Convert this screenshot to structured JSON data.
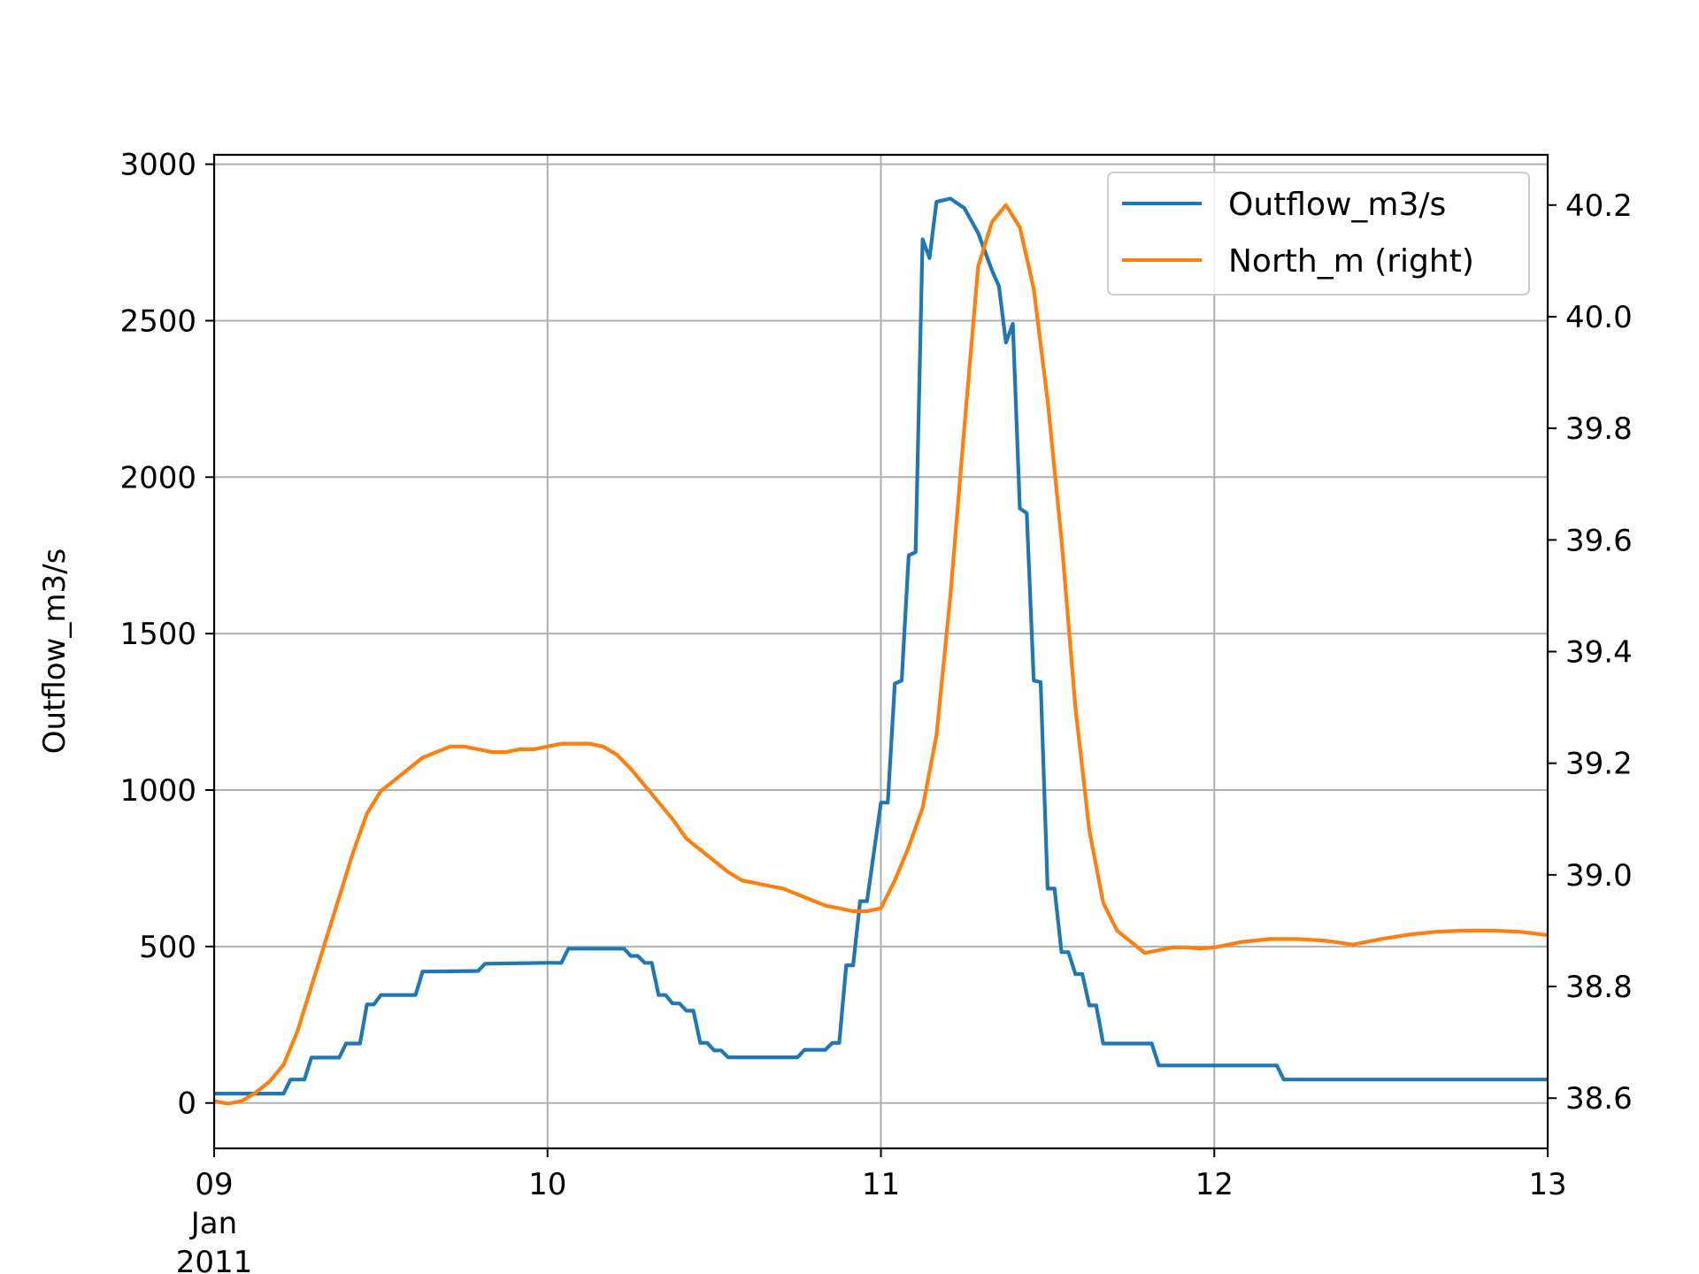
{
  "chart_data": {
    "type": "line",
    "title": "",
    "xlabel": "",
    "ylabel": "Outflow_m3/s",
    "y2label": "",
    "grid": true,
    "legend": "top-right",
    "x_range": [
      "2011-01-09 00:00",
      "2011-01-13 00:00"
    ],
    "x_ticks": [
      {
        "date": "2011-01-09 00:00",
        "label": "09",
        "sublabels": [
          "Jan",
          "2011"
        ]
      },
      {
        "date": "2011-01-10 00:00",
        "label": "10",
        "sublabels": []
      },
      {
        "date": "2011-01-11 00:00",
        "label": "11",
        "sublabels": []
      },
      {
        "date": "2011-01-12 00:00",
        "label": "12",
        "sublabels": []
      },
      {
        "date": "2011-01-13 00:00",
        "label": "13",
        "sublabels": []
      }
    ],
    "ylim": [
      -145,
      3030
    ],
    "y_ticks": [
      0,
      500,
      1000,
      1500,
      2000,
      2500,
      3000
    ],
    "y2lim": [
      38.51,
      40.29
    ],
    "y2_ticks": [
      "38.6",
      "38.8",
      "39.0",
      "39.2",
      "39.4",
      "39.6",
      "39.8",
      "40.0",
      "40.2"
    ],
    "series": [
      {
        "name": "Outflow_m3/s",
        "axis": "left",
        "color": "#1f77b4",
        "points": [
          [
            "2011-01-09 00:00",
            30
          ],
          [
            "2011-01-09 05:00",
            30
          ],
          [
            "2011-01-09 05:30",
            75
          ],
          [
            "2011-01-09 06:30",
            75
          ],
          [
            "2011-01-09 07:00",
            145
          ],
          [
            "2011-01-09 09:00",
            145
          ],
          [
            "2011-01-09 09:30",
            190
          ],
          [
            "2011-01-09 10:30",
            190
          ],
          [
            "2011-01-09 11:00",
            315
          ],
          [
            "2011-01-09 11:30",
            315
          ],
          [
            "2011-01-09 12:00",
            345
          ],
          [
            "2011-01-09 14:30",
            345
          ],
          [
            "2011-01-09 15:00",
            420
          ],
          [
            "2011-01-09 19:00",
            422
          ],
          [
            "2011-01-09 19:30",
            445
          ],
          [
            "2011-01-10 00:00",
            448
          ],
          [
            "2011-01-10 01:00",
            448
          ],
          [
            "2011-01-10 01:30",
            493
          ],
          [
            "2011-01-10 05:30",
            493
          ],
          [
            "2011-01-10 06:00",
            470
          ],
          [
            "2011-01-10 06:30",
            470
          ],
          [
            "2011-01-10 07:00",
            448
          ],
          [
            "2011-01-10 07:30",
            448
          ],
          [
            "2011-01-10 08:00",
            345
          ],
          [
            "2011-01-10 08:30",
            345
          ],
          [
            "2011-01-10 09:00",
            318
          ],
          [
            "2011-01-10 09:30",
            318
          ],
          [
            "2011-01-10 10:00",
            295
          ],
          [
            "2011-01-10 10:30",
            295
          ],
          [
            "2011-01-10 11:00",
            192
          ],
          [
            "2011-01-10 11:30",
            192
          ],
          [
            "2011-01-10 12:00",
            168
          ],
          [
            "2011-01-10 12:30",
            168
          ],
          [
            "2011-01-10 13:00",
            146
          ],
          [
            "2011-01-10 18:00",
            146
          ],
          [
            "2011-01-10 18:30",
            170
          ],
          [
            "2011-01-10 20:00",
            170
          ],
          [
            "2011-01-10 20:30",
            192
          ],
          [
            "2011-01-10 21:00",
            192
          ],
          [
            "2011-01-10 21:30",
            440
          ],
          [
            "2011-01-10 22:00",
            440
          ],
          [
            "2011-01-10 22:30",
            645
          ],
          [
            "2011-01-10 23:00",
            645
          ],
          [
            "2011-01-11 00:00",
            960
          ],
          [
            "2011-01-11 00:30",
            960
          ],
          [
            "2011-01-11 01:00",
            1340
          ],
          [
            "2011-01-11 01:30",
            1350
          ],
          [
            "2011-01-11 02:00",
            1750
          ],
          [
            "2011-01-11 02:30",
            1760
          ],
          [
            "2011-01-11 03:00",
            2760
          ],
          [
            "2011-01-11 03:30",
            2700
          ],
          [
            "2011-01-11 04:00",
            2880
          ],
          [
            "2011-01-11 05:00",
            2890
          ],
          [
            "2011-01-11 06:00",
            2860
          ],
          [
            "2011-01-11 07:00",
            2780
          ],
          [
            "2011-01-11 08:00",
            2660
          ],
          [
            "2011-01-11 08:30",
            2610
          ],
          [
            "2011-01-11 09:00",
            2430
          ],
          [
            "2011-01-11 09:30",
            2490
          ],
          [
            "2011-01-11 10:00",
            1900
          ],
          [
            "2011-01-11 10:30",
            1885
          ],
          [
            "2011-01-11 11:00",
            1350
          ],
          [
            "2011-01-11 11:30",
            1345
          ],
          [
            "2011-01-11 12:00",
            685
          ],
          [
            "2011-01-11 12:30",
            685
          ],
          [
            "2011-01-11 13:00",
            482
          ],
          [
            "2011-01-11 13:30",
            482
          ],
          [
            "2011-01-11 14:00",
            412
          ],
          [
            "2011-01-11 14:30",
            412
          ],
          [
            "2011-01-11 15:00",
            312
          ],
          [
            "2011-01-11 15:30",
            312
          ],
          [
            "2011-01-11 16:00",
            190
          ],
          [
            "2011-01-11 19:30",
            190
          ],
          [
            "2011-01-11 20:00",
            120
          ],
          [
            "2011-01-12 04:30",
            120
          ],
          [
            "2011-01-12 05:00",
            75
          ],
          [
            "2011-01-13 00:00",
            75
          ]
        ]
      },
      {
        "name": "North_m (right)",
        "axis": "right",
        "color": "#ff7f0e",
        "points": [
          [
            "2011-01-09 00:00",
            38.595
          ],
          [
            "2011-01-09 01:00",
            38.59
          ],
          [
            "2011-01-09 02:00",
            38.595
          ],
          [
            "2011-01-09 03:00",
            38.61
          ],
          [
            "2011-01-09 04:00",
            38.63
          ],
          [
            "2011-01-09 05:00",
            38.66
          ],
          [
            "2011-01-09 06:00",
            38.72
          ],
          [
            "2011-01-09 07:00",
            38.8
          ],
          [
            "2011-01-09 08:00",
            38.88
          ],
          [
            "2011-01-09 09:00",
            38.96
          ],
          [
            "2011-01-09 10:00",
            39.04
          ],
          [
            "2011-01-09 11:00",
            39.11
          ],
          [
            "2011-01-09 12:00",
            39.15
          ],
          [
            "2011-01-09 13:00",
            39.17
          ],
          [
            "2011-01-09 14:00",
            39.19
          ],
          [
            "2011-01-09 15:00",
            39.21
          ],
          [
            "2011-01-09 16:00",
            39.22
          ],
          [
            "2011-01-09 17:00",
            39.23
          ],
          [
            "2011-01-09 18:00",
            39.23
          ],
          [
            "2011-01-09 19:00",
            39.225
          ],
          [
            "2011-01-09 20:00",
            39.22
          ],
          [
            "2011-01-09 21:00",
            39.22
          ],
          [
            "2011-01-09 22:00",
            39.225
          ],
          [
            "2011-01-09 23:00",
            39.225
          ],
          [
            "2011-01-10 00:00",
            39.23
          ],
          [
            "2011-01-10 01:00",
            39.235
          ],
          [
            "2011-01-10 02:00",
            39.235
          ],
          [
            "2011-01-10 03:00",
            39.235
          ],
          [
            "2011-01-10 04:00",
            39.23
          ],
          [
            "2011-01-10 05:00",
            39.215
          ],
          [
            "2011-01-10 06:00",
            39.19
          ],
          [
            "2011-01-10 07:00",
            39.16
          ],
          [
            "2011-01-10 08:00",
            39.13
          ],
          [
            "2011-01-10 09:00",
            39.1
          ],
          [
            "2011-01-10 10:00",
            39.065
          ],
          [
            "2011-01-10 11:00",
            39.045
          ],
          [
            "2011-01-10 12:00",
            39.025
          ],
          [
            "2011-01-10 13:00",
            39.005
          ],
          [
            "2011-01-10 14:00",
            38.99
          ],
          [
            "2011-01-10 15:00",
            38.985
          ],
          [
            "2011-01-10 16:00",
            38.98
          ],
          [
            "2011-01-10 17:00",
            38.975
          ],
          [
            "2011-01-10 18:00",
            38.965
          ],
          [
            "2011-01-10 19:00",
            38.955
          ],
          [
            "2011-01-10 20:00",
            38.945
          ],
          [
            "2011-01-10 21:00",
            38.94
          ],
          [
            "2011-01-10 22:00",
            38.935
          ],
          [
            "2011-01-10 23:00",
            38.935
          ],
          [
            "2011-01-11 00:00",
            38.94
          ],
          [
            "2011-01-11 01:00",
            38.99
          ],
          [
            "2011-01-11 02:00",
            39.05
          ],
          [
            "2011-01-11 03:00",
            39.12
          ],
          [
            "2011-01-11 04:00",
            39.25
          ],
          [
            "2011-01-11 05:00",
            39.5
          ],
          [
            "2011-01-11 06:00",
            39.8
          ],
          [
            "2011-01-11 07:00",
            40.09
          ],
          [
            "2011-01-11 08:00",
            40.17
          ],
          [
            "2011-01-11 09:00",
            40.2
          ],
          [
            "2011-01-11 10:00",
            40.16
          ],
          [
            "2011-01-11 11:00",
            40.05
          ],
          [
            "2011-01-11 12:00",
            39.85
          ],
          [
            "2011-01-11 13:00",
            39.6
          ],
          [
            "2011-01-11 14:00",
            39.3
          ],
          [
            "2011-01-11 15:00",
            39.08
          ],
          [
            "2011-01-11 16:00",
            38.95
          ],
          [
            "2011-01-11 17:00",
            38.9
          ],
          [
            "2011-01-11 18:00",
            38.88
          ],
          [
            "2011-01-11 19:00",
            38.86
          ],
          [
            "2011-01-11 20:00",
            38.865
          ],
          [
            "2011-01-11 21:00",
            38.87
          ],
          [
            "2011-01-11 22:00",
            38.87
          ],
          [
            "2011-01-11 23:00",
            38.868
          ],
          [
            "2011-01-12 00:00",
            38.87
          ],
          [
            "2011-01-12 02:00",
            38.88
          ],
          [
            "2011-01-12 04:00",
            38.885
          ],
          [
            "2011-01-12 06:00",
            38.885
          ],
          [
            "2011-01-12 08:00",
            38.882
          ],
          [
            "2011-01-12 10:00",
            38.875
          ],
          [
            "2011-01-12 12:00",
            38.885
          ],
          [
            "2011-01-12 14:00",
            38.893
          ],
          [
            "2011-01-12 16:00",
            38.898
          ],
          [
            "2011-01-12 18:00",
            38.9
          ],
          [
            "2011-01-12 20:00",
            38.9
          ],
          [
            "2011-01-12 22:00",
            38.898
          ],
          [
            "2011-01-13 00:00",
            38.892
          ]
        ]
      }
    ]
  }
}
